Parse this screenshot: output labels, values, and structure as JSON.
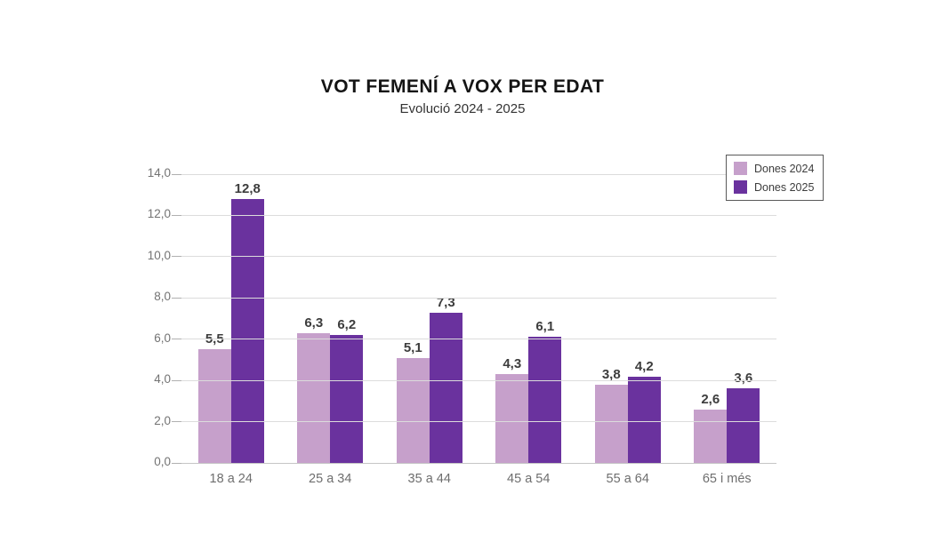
{
  "header": {
    "title": "VOT FEMENÍ A VOX PER EDAT",
    "subtitle": "Evolució 2024 - 2025"
  },
  "colors": {
    "series_2024": "#c6a0cb",
    "series_2025": "#6a329e",
    "gridline": "#dcdcdc",
    "axis_text": "#737373",
    "value_label": "#3d3d3d",
    "legend_border": "#595959"
  },
  "chart_data": {
    "type": "bar",
    "title": "VOT FEMENÍ A VOX PER EDAT",
    "subtitle": "Evolució 2024 - 2025",
    "categories": [
      "18 a 24",
      "25 a 34",
      "35 a 44",
      "45 a 54",
      "55 a 64",
      "65 i més"
    ],
    "series": [
      {
        "name": "Dones 2024",
        "color": "#c6a0cb",
        "values": [
          5.5,
          6.3,
          5.1,
          4.3,
          3.8,
          2.6
        ]
      },
      {
        "name": "Dones 2025",
        "color": "#6a329e",
        "values": [
          12.8,
          6.2,
          7.3,
          6.1,
          4.2,
          3.6
        ]
      }
    ],
    "xlabel": "",
    "ylabel": "",
    "ylim": [
      0,
      14
    ],
    "ytick_step": 2,
    "ytick_labels": [
      "0,0",
      "2,0",
      "4,0",
      "6,0",
      "8,0",
      "10,0",
      "12,0",
      "14,0"
    ],
    "decimal_separator": ",",
    "grid": true,
    "data_labels": true,
    "legend_position": "top-right"
  }
}
